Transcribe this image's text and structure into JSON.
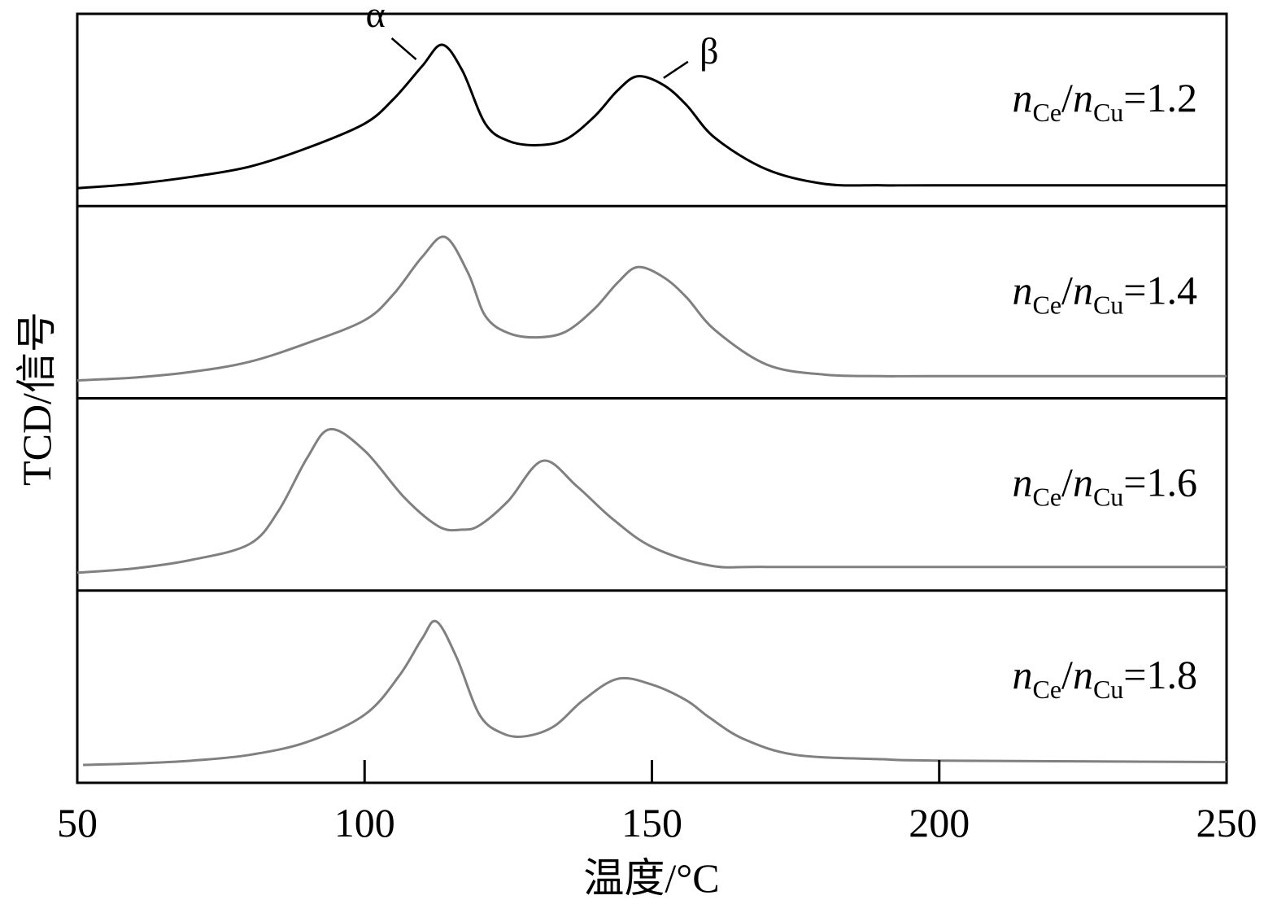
{
  "chart_data": {
    "type": "line",
    "xlabel": "温度/°C",
    "ylabel": "TCD/信号",
    "xlim": [
      50,
      250
    ],
    "xticks": [
      50,
      100,
      150,
      200,
      250
    ],
    "grid": false,
    "series": [
      {
        "name": "n_Ce/n_Cu=1.2",
        "label": {
          "n1": "n",
          "s1": "Ce",
          "slash": "/",
          "n2": "n",
          "s2": "Cu",
          "val": "=1.2"
        },
        "color": "#000000",
        "peaks_x": [
          113.5,
          147.5
        ],
        "x": [
          50,
          60,
          70,
          80,
          90,
          100,
          105,
          110,
          113.5,
          117,
          121,
          125,
          130,
          135,
          140,
          144,
          147.5,
          152,
          156,
          161,
          170,
          180,
          190,
          200,
          250
        ],
        "y": [
          0.0,
          0.03,
          0.08,
          0.15,
          0.28,
          0.45,
          0.62,
          0.85,
          1.0,
          0.82,
          0.45,
          0.33,
          0.3,
          0.34,
          0.5,
          0.68,
          0.78,
          0.72,
          0.58,
          0.35,
          0.13,
          0.03,
          0.02,
          0.02,
          0.02
        ]
      },
      {
        "name": "n_Ce/n_Cu=1.4",
        "label": {
          "n1": "n",
          "s1": "Ce",
          "slash": "/",
          "n2": "n",
          "s2": "Cu",
          "val": "=1.4"
        },
        "color": "#808080",
        "peaks_x": [
          114,
          147.5
        ],
        "x": [
          50,
          60,
          70,
          80,
          90,
          100,
          105,
          110,
          114,
          118,
          121,
          125,
          130,
          135,
          140,
          144,
          147.5,
          152,
          156,
          161,
          170,
          180,
          190,
          200,
          250
        ],
        "y": [
          0.0,
          0.02,
          0.06,
          0.13,
          0.26,
          0.42,
          0.6,
          0.86,
          1.0,
          0.75,
          0.45,
          0.33,
          0.3,
          0.34,
          0.5,
          0.68,
          0.79,
          0.72,
          0.58,
          0.35,
          0.11,
          0.04,
          0.03,
          0.03,
          0.03
        ]
      },
      {
        "name": "n_Ce/n_Cu=1.6",
        "label": {
          "n1": "n",
          "s1": "Ce",
          "slash": "/",
          "n2": "n",
          "s2": "Cu",
          "val": "=1.6"
        },
        "color": "#808080",
        "peaks_x": [
          94,
          131
        ],
        "x": [
          50,
          60,
          70,
          80,
          85,
          90,
          94,
          100,
          107,
          113,
          117,
          120,
          125,
          131,
          137,
          143,
          150,
          160,
          170,
          200,
          250
        ],
        "y": [
          0.0,
          0.03,
          0.09,
          0.2,
          0.43,
          0.8,
          1.0,
          0.85,
          0.52,
          0.32,
          0.3,
          0.33,
          0.5,
          0.78,
          0.6,
          0.38,
          0.18,
          0.05,
          0.04,
          0.04,
          0.04
        ]
      },
      {
        "name": "n_Ce/n_Cu=1.8",
        "label": {
          "n1": "n",
          "s1": "Ce",
          "slash": "/",
          "n2": "n",
          "s2": "Cu",
          "val": "=1.8"
        },
        "color": "#808080",
        "peaks_x": [
          112.5,
          144
        ],
        "x": [
          51,
          60,
          70,
          80,
          90,
          100,
          106,
          110,
          112.5,
          116,
          120,
          124,
          128,
          133,
          138,
          144,
          150,
          156,
          160,
          166,
          175,
          190,
          200,
          250
        ],
        "y": [
          0.0,
          0.01,
          0.03,
          0.07,
          0.16,
          0.35,
          0.62,
          0.88,
          1.0,
          0.75,
          0.35,
          0.22,
          0.2,
          0.27,
          0.45,
          0.6,
          0.56,
          0.45,
          0.33,
          0.18,
          0.07,
          0.04,
          0.03,
          0.02
        ]
      }
    ],
    "annotations": [
      {
        "text": "α",
        "series": 0,
        "peak": 0
      },
      {
        "text": "β",
        "series": 0,
        "peak": 1
      }
    ]
  }
}
